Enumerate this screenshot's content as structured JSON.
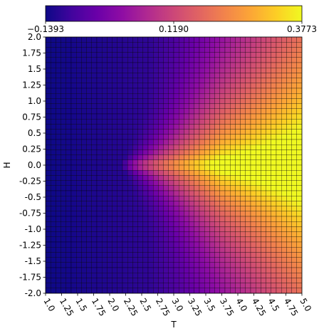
{
  "chart_data": {
    "type": "heatmap",
    "colormap": "plasma",
    "xlabel": "T",
    "ylabel": "H",
    "x_tick_labels": [
      "1.0",
      "1.25",
      "1.5",
      "1.75",
      "2.0",
      "2.25",
      "2.5",
      "2.75",
      "3.0",
      "3.25",
      "3.5",
      "3.75",
      "4.0",
      "4.25",
      "4.5",
      "4.75",
      "5.0"
    ],
    "y_tick_labels": [
      "2.0",
      "1.75",
      "1.5",
      "1.25",
      "1.0",
      "0.75",
      "0.5",
      "0.25",
      "0.0",
      "-0.25",
      "-0.5",
      "-0.75",
      "-1.0",
      "-1.25",
      "-1.5",
      "-1.75",
      "-2.0"
    ],
    "xlim": [
      1.0,
      5.0
    ],
    "ylim": [
      -2.0,
      2.0
    ],
    "grid_cells": [
      50,
      50
    ],
    "cell_edge_color": "#000000",
    "colorbar": {
      "position": "top",
      "tick_labels": [
        "−0.1393",
        "0.1190",
        "0.3773"
      ],
      "min": -0.1393,
      "max": 0.3773
    },
    "field_description": "Values rise with T; peak near H = 0 for T above about 2.3; lowest at low T."
  }
}
